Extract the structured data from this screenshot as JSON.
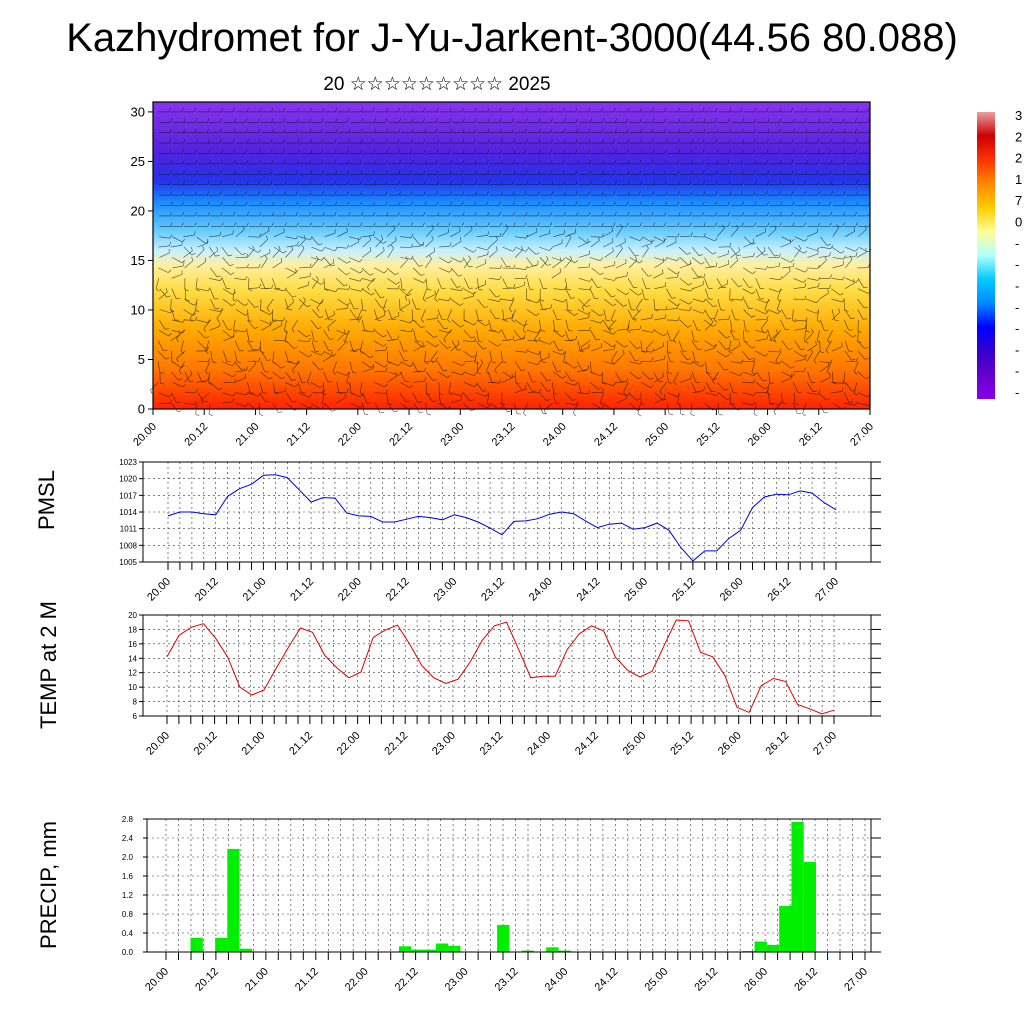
{
  "title": "Kazhydromet for J-Yu-Jarkent-3000(44.56 80.088)",
  "subtitle": "20 ☆☆☆☆☆☆☆☆☆ 2025",
  "colorbar": {
    "labels": [
      "3",
      "2",
      "2",
      "1",
      "7",
      "0",
      "-",
      "-",
      "-",
      "-",
      "-",
      "-",
      "-",
      "-"
    ],
    "colors": [
      "#e8a0a0",
      "#cc0000",
      "#ff3300",
      "#ff8800",
      "#ffcc00",
      "#ffff99",
      "#b0ffff",
      "#00ccff",
      "#0088ff",
      "#0000ff",
      "#3300cc",
      "#6600cc",
      "#8800ee"
    ]
  },
  "chart_data": [
    {
      "id": "cross-section",
      "type": "heatmap",
      "title": "",
      "xlabel": "",
      "ylabel": "",
      "x_tick_labels": [
        "20.00",
        "20.12",
        "21.00",
        "21.12",
        "22.00",
        "22.12",
        "23.00",
        "23.12",
        "24.00",
        "24.12",
        "25.00",
        "25.12",
        "26.00",
        "26.12",
        "27.00"
      ],
      "y_ticks": [
        0,
        5,
        10,
        15,
        20,
        25,
        30
      ],
      "ylim": [
        0,
        31
      ],
      "colors": [
        "#ff2200",
        "#ff7700",
        "#ffaa00",
        "#ffdd44",
        "#fff0a0",
        "#c8f0ff",
        "#66ccff",
        "#1a88ff",
        "#2233ee",
        "#5522dd",
        "#8833ee"
      ],
      "color_levels": [
        0,
        4,
        8,
        12,
        14.5,
        16,
        18,
        21,
        23,
        26,
        31
      ],
      "wind_barbs": true
    },
    {
      "id": "pmsl",
      "type": "line",
      "ylabel": "PMSL",
      "ylim": [
        1005,
        1023
      ],
      "y_ticks": [
        1005,
        1008,
        1011,
        1014,
        1017,
        1020,
        1023
      ],
      "x_tick_labels": [
        "20.00",
        "20.12",
        "21.00",
        "21.12",
        "22.00",
        "22.12",
        "23.00",
        "23.12",
        "24.00",
        "24.12",
        "25.00",
        "25.12",
        "26.00",
        "26.12",
        "27.00"
      ],
      "series": [
        {
          "color": "#0000dd",
          "values": [
            1013.3,
            1014.0,
            1014.0,
            1013.7,
            1013.5,
            1016.8,
            1018.2,
            1019.0,
            1020.6,
            1020.7,
            1020.2,
            1018.0,
            1015.8,
            1016.6,
            1016.5,
            1013.8,
            1013.3,
            1013.2,
            1012.2,
            1012.2,
            1012.7,
            1013.2,
            1013.0,
            1012.6,
            1013.5,
            1013.0,
            1012.2,
            1011.1,
            1009.9,
            1012.3,
            1012.4,
            1012.8,
            1013.6,
            1014.0,
            1013.7,
            1012.4,
            1011.2,
            1011.8,
            1012.0,
            1010.9,
            1011.2,
            1012.0,
            1010.7,
            1007.6,
            1005.2,
            1007.0,
            1007.0,
            1009.2,
            1010.7,
            1014.8,
            1016.7,
            1017.2,
            1017.1,
            1017.8,
            1017.4,
            1015.7,
            1014.4
          ]
        }
      ]
    },
    {
      "id": "temp",
      "type": "line",
      "ylabel": "TEMP at 2 M",
      "ylim": [
        6,
        20
      ],
      "y_ticks": [
        6,
        8,
        10,
        12,
        14,
        16,
        18,
        20
      ],
      "x_tick_labels": [
        "20.00",
        "20.12",
        "21.00",
        "21.12",
        "22.00",
        "22.12",
        "23.00",
        "23.12",
        "24.00",
        "24.12",
        "25.00",
        "25.12",
        "26.00",
        "26.12",
        "27.00"
      ],
      "series": [
        {
          "color": "#dd0000",
          "values": [
            14.2,
            17.2,
            18.3,
            18.8,
            16.8,
            14.2,
            10.0,
            8.9,
            9.6,
            12.6,
            15.5,
            18.2,
            17.6,
            14.4,
            12.7,
            11.3,
            12.1,
            16.9,
            17.9,
            18.6,
            16.0,
            13.0,
            11.3,
            10.5,
            11.1,
            13.5,
            16.5,
            18.5,
            19.0,
            15.2,
            11.3,
            11.5,
            11.5,
            15.2,
            17.4,
            18.5,
            17.8,
            14.1,
            12.3,
            11.4,
            12.2,
            15.8,
            19.3,
            19.2,
            14.8,
            14.2,
            11.6,
            7.2,
            6.5,
            10.2,
            11.2,
            10.8,
            7.6,
            7.0,
            6.3,
            6.8
          ]
        }
      ]
    },
    {
      "id": "precip",
      "type": "bar",
      "ylabel": "PRECIP, mm",
      "ylim": [
        0,
        2.8
      ],
      "y_ticks": [
        "0.0",
        "0.4",
        "0.8",
        "1.2",
        "1.6",
        "2.0",
        "2.4",
        "2.8"
      ],
      "x_tick_labels": [
        "20.00",
        "20.12",
        "21.00",
        "21.12",
        "22.00",
        "22.12",
        "23.00",
        "23.12",
        "24.00",
        "24.12",
        "25.00",
        "25.12",
        "26.00",
        "26.12",
        "27.00"
      ],
      "color": "#00ee00",
      "values": [
        0,
        0,
        0.3,
        0,
        0.3,
        2.17,
        0.07,
        0,
        0,
        0,
        0,
        0,
        0,
        0,
        0,
        0,
        0,
        0,
        0,
        0.12,
        0.05,
        0.05,
        0.18,
        0.13,
        0,
        0,
        0,
        0.57,
        0,
        0.03,
        0,
        0.1,
        0.03,
        0,
        0,
        0,
        0,
        0,
        0,
        0,
        0,
        0,
        0,
        0,
        0,
        0,
        0,
        0.02,
        0.22,
        0.15,
        0.97,
        2.74,
        1.9,
        0,
        0,
        0,
        0
      ]
    }
  ]
}
